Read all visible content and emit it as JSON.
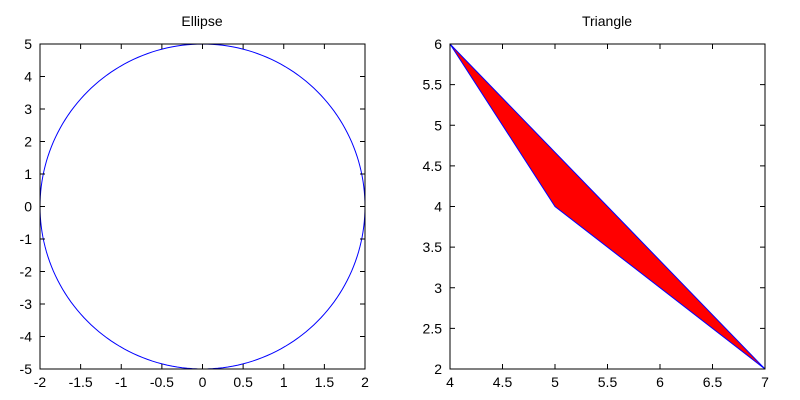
{
  "chart_data": [
    {
      "type": "line",
      "title": "Ellipse",
      "xlabel": "",
      "ylabel": "",
      "xlim": [
        -2,
        2
      ],
      "ylim": [
        -5,
        5
      ],
      "xticks": [
        "-2",
        "-1.5",
        "-1",
        "-0.5",
        "0",
        "0.5",
        "1",
        "1.5",
        "2"
      ],
      "yticks": [
        "-5",
        "-4",
        "-3",
        "-2",
        "-1",
        "0",
        "1",
        "2",
        "3",
        "4",
        "5"
      ],
      "grid": false,
      "series": [
        {
          "shape": "ellipse",
          "center": [
            0,
            0
          ],
          "semi_axes": [
            2,
            5
          ],
          "color": "#0000ff",
          "fill": "none"
        }
      ]
    },
    {
      "type": "area",
      "title": "Triangle",
      "xlabel": "",
      "ylabel": "",
      "xlim": [
        4,
        7
      ],
      "ylim": [
        2,
        6
      ],
      "xticks": [
        "4",
        "4.5",
        "5",
        "5.5",
        "6",
        "6.5",
        "7"
      ],
      "yticks": [
        "2",
        "2.5",
        "3",
        "3.5",
        "4",
        "4.5",
        "5",
        "5.5",
        "6"
      ],
      "grid": false,
      "series": [
        {
          "shape": "polygon",
          "x": [
            4,
            5,
            7
          ],
          "y": [
            6,
            4,
            2
          ],
          "fill": "#ff0000",
          "color": "#0000ff"
        }
      ]
    }
  ]
}
